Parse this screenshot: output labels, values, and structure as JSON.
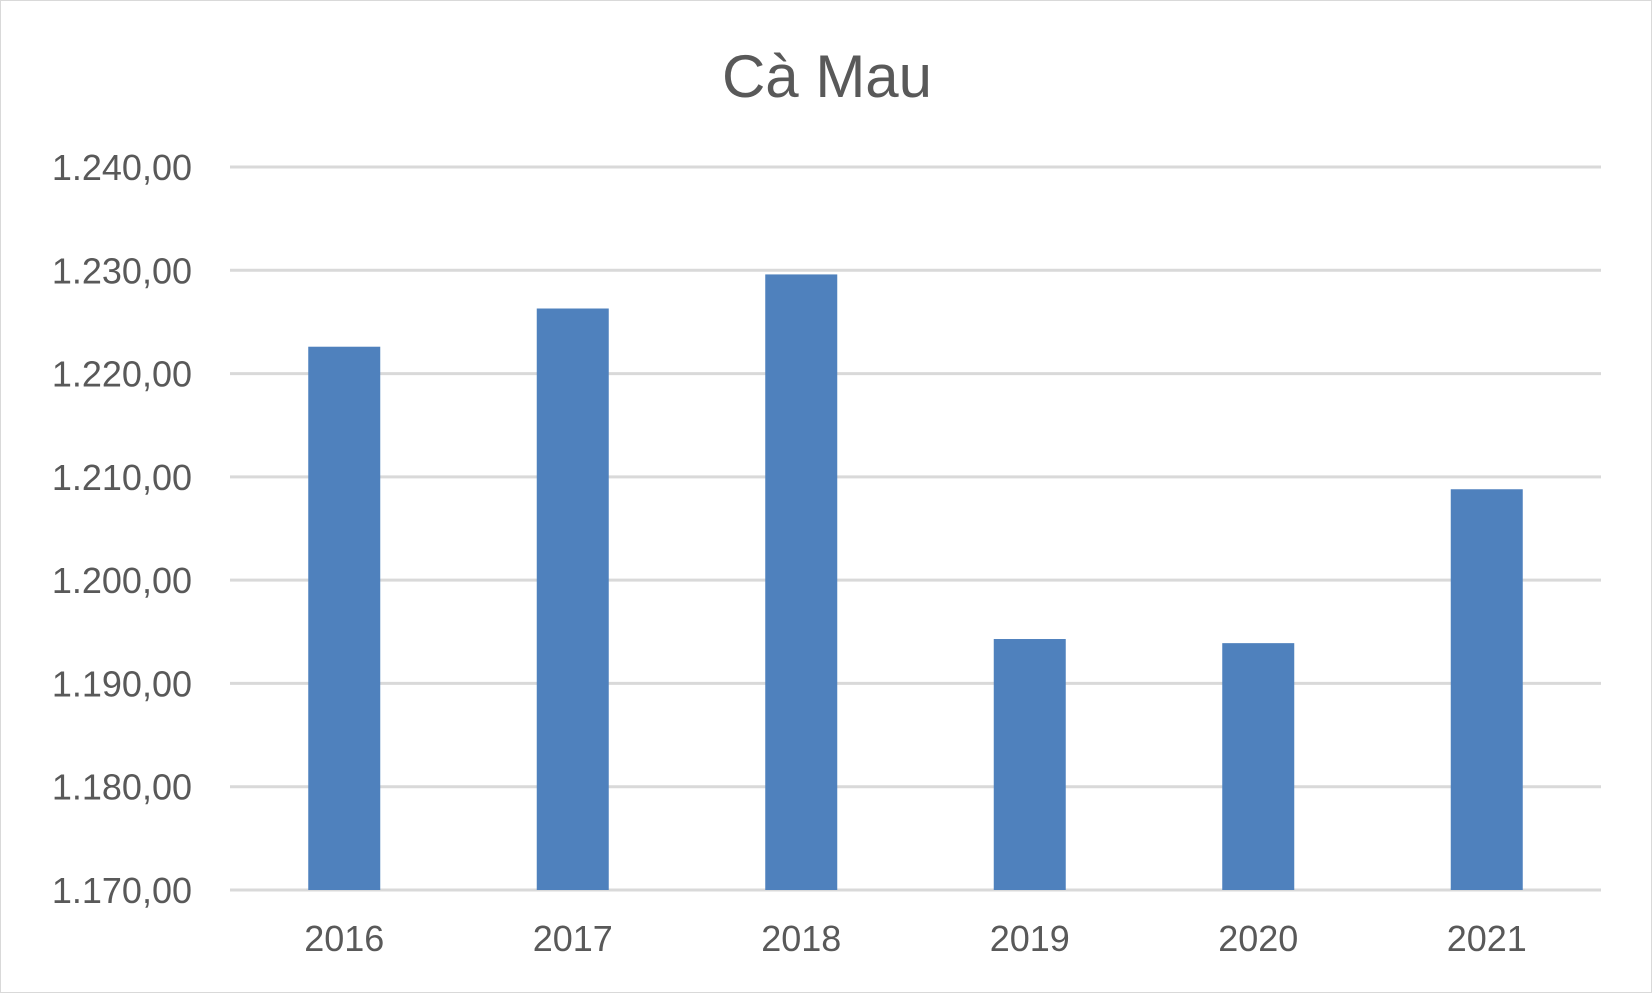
{
  "chart_data": {
    "type": "bar",
    "title": "Cà Mau",
    "xlabel": "",
    "ylabel": "",
    "categories": [
      "2016",
      "2017",
      "2018",
      "2019",
      "2020",
      "2021"
    ],
    "series": [
      {
        "values": [
          1222.6,
          1226.3,
          1229.6,
          1194.3,
          1193.9,
          1208.8
        ]
      }
    ],
    "ylim": [
      1170,
      1240
    ],
    "ytick_step": 10,
    "ytick_labels": [
      "1.170,00",
      "1.180,00",
      "1.190,00",
      "1.200,00",
      "1.210,00",
      "1.220,00",
      "1.230,00",
      "1.240,00"
    ],
    "grid": true,
    "legend": "none",
    "bar_color": "#4f81bd",
    "grid_color": "#d9d9d9",
    "text_color": "#595959"
  }
}
